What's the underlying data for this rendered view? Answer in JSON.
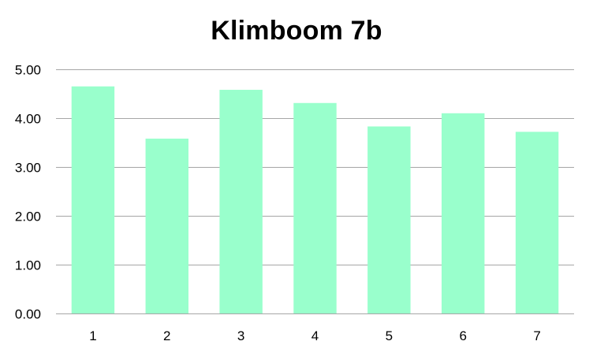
{
  "chart_data": {
    "type": "bar",
    "title": "Klimboom 7b",
    "xlabel": "",
    "ylabel": "",
    "categories": [
      "1",
      "2",
      "3",
      "4",
      "5",
      "6",
      "7"
    ],
    "values": [
      4.65,
      3.58,
      4.58,
      4.31,
      3.83,
      4.1,
      3.72
    ],
    "ylim": [
      0,
      5
    ],
    "ytick_values": [
      0,
      1,
      2,
      3,
      4,
      5
    ],
    "ytick_labels": [
      "0.00",
      "1.00",
      "2.00",
      "3.00",
      "4.00",
      "5.00"
    ],
    "grid": true,
    "legend": "none",
    "colors": {
      "bar": "#99FFCC",
      "gridline": "#A6A6A6",
      "axis_text": "#000000"
    }
  }
}
